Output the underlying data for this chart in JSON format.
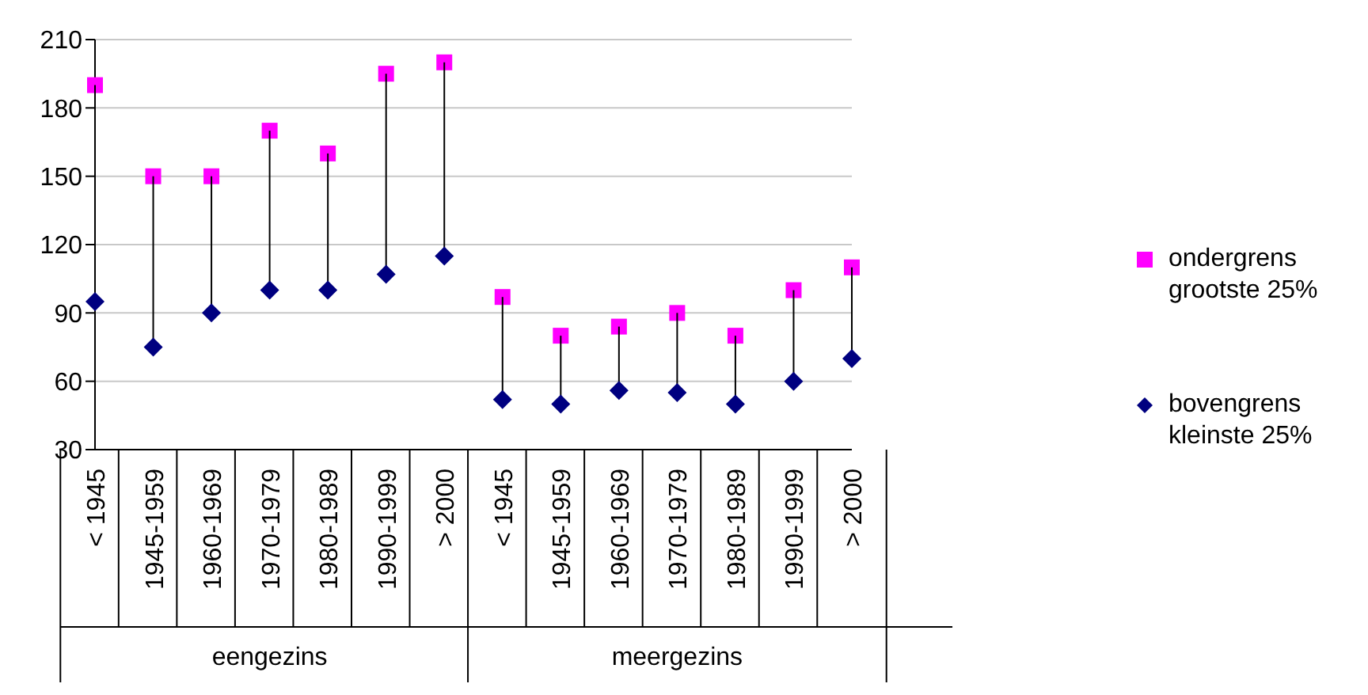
{
  "chart_data": {
    "type": "scatter",
    "categories": [
      "< 1945",
      "1945-1959",
      "1960-1969",
      "1970-1979",
      "1980-1989",
      "1990-1999",
      "> 2000",
      "< 1945",
      "1945-1959",
      "1960-1969",
      "1970-1979",
      "1980-1989",
      "1990-1999",
      "> 2000"
    ],
    "series": [
      {
        "name": "ondergrens grootste 25%",
        "color": "#ff00ff",
        "marker": "square",
        "values": [
          190,
          150,
          150,
          170,
          160,
          195,
          200,
          97,
          80,
          84,
          90,
          80,
          100,
          110
        ]
      },
      {
        "name": "bovengrens kleinste 25%",
        "color": "#000080",
        "marker": "diamond",
        "values": [
          95,
          75,
          90,
          100,
          100,
          107,
          115,
          52,
          50,
          56,
          55,
          50,
          60,
          70
        ]
      }
    ],
    "annotations": [
      "eengezins",
      "meergezins"
    ],
    "ylim": [
      30,
      210
    ],
    "yticks": [
      30,
      60,
      90,
      120,
      150,
      180,
      210
    ],
    "grid": "y",
    "legend": "right"
  }
}
